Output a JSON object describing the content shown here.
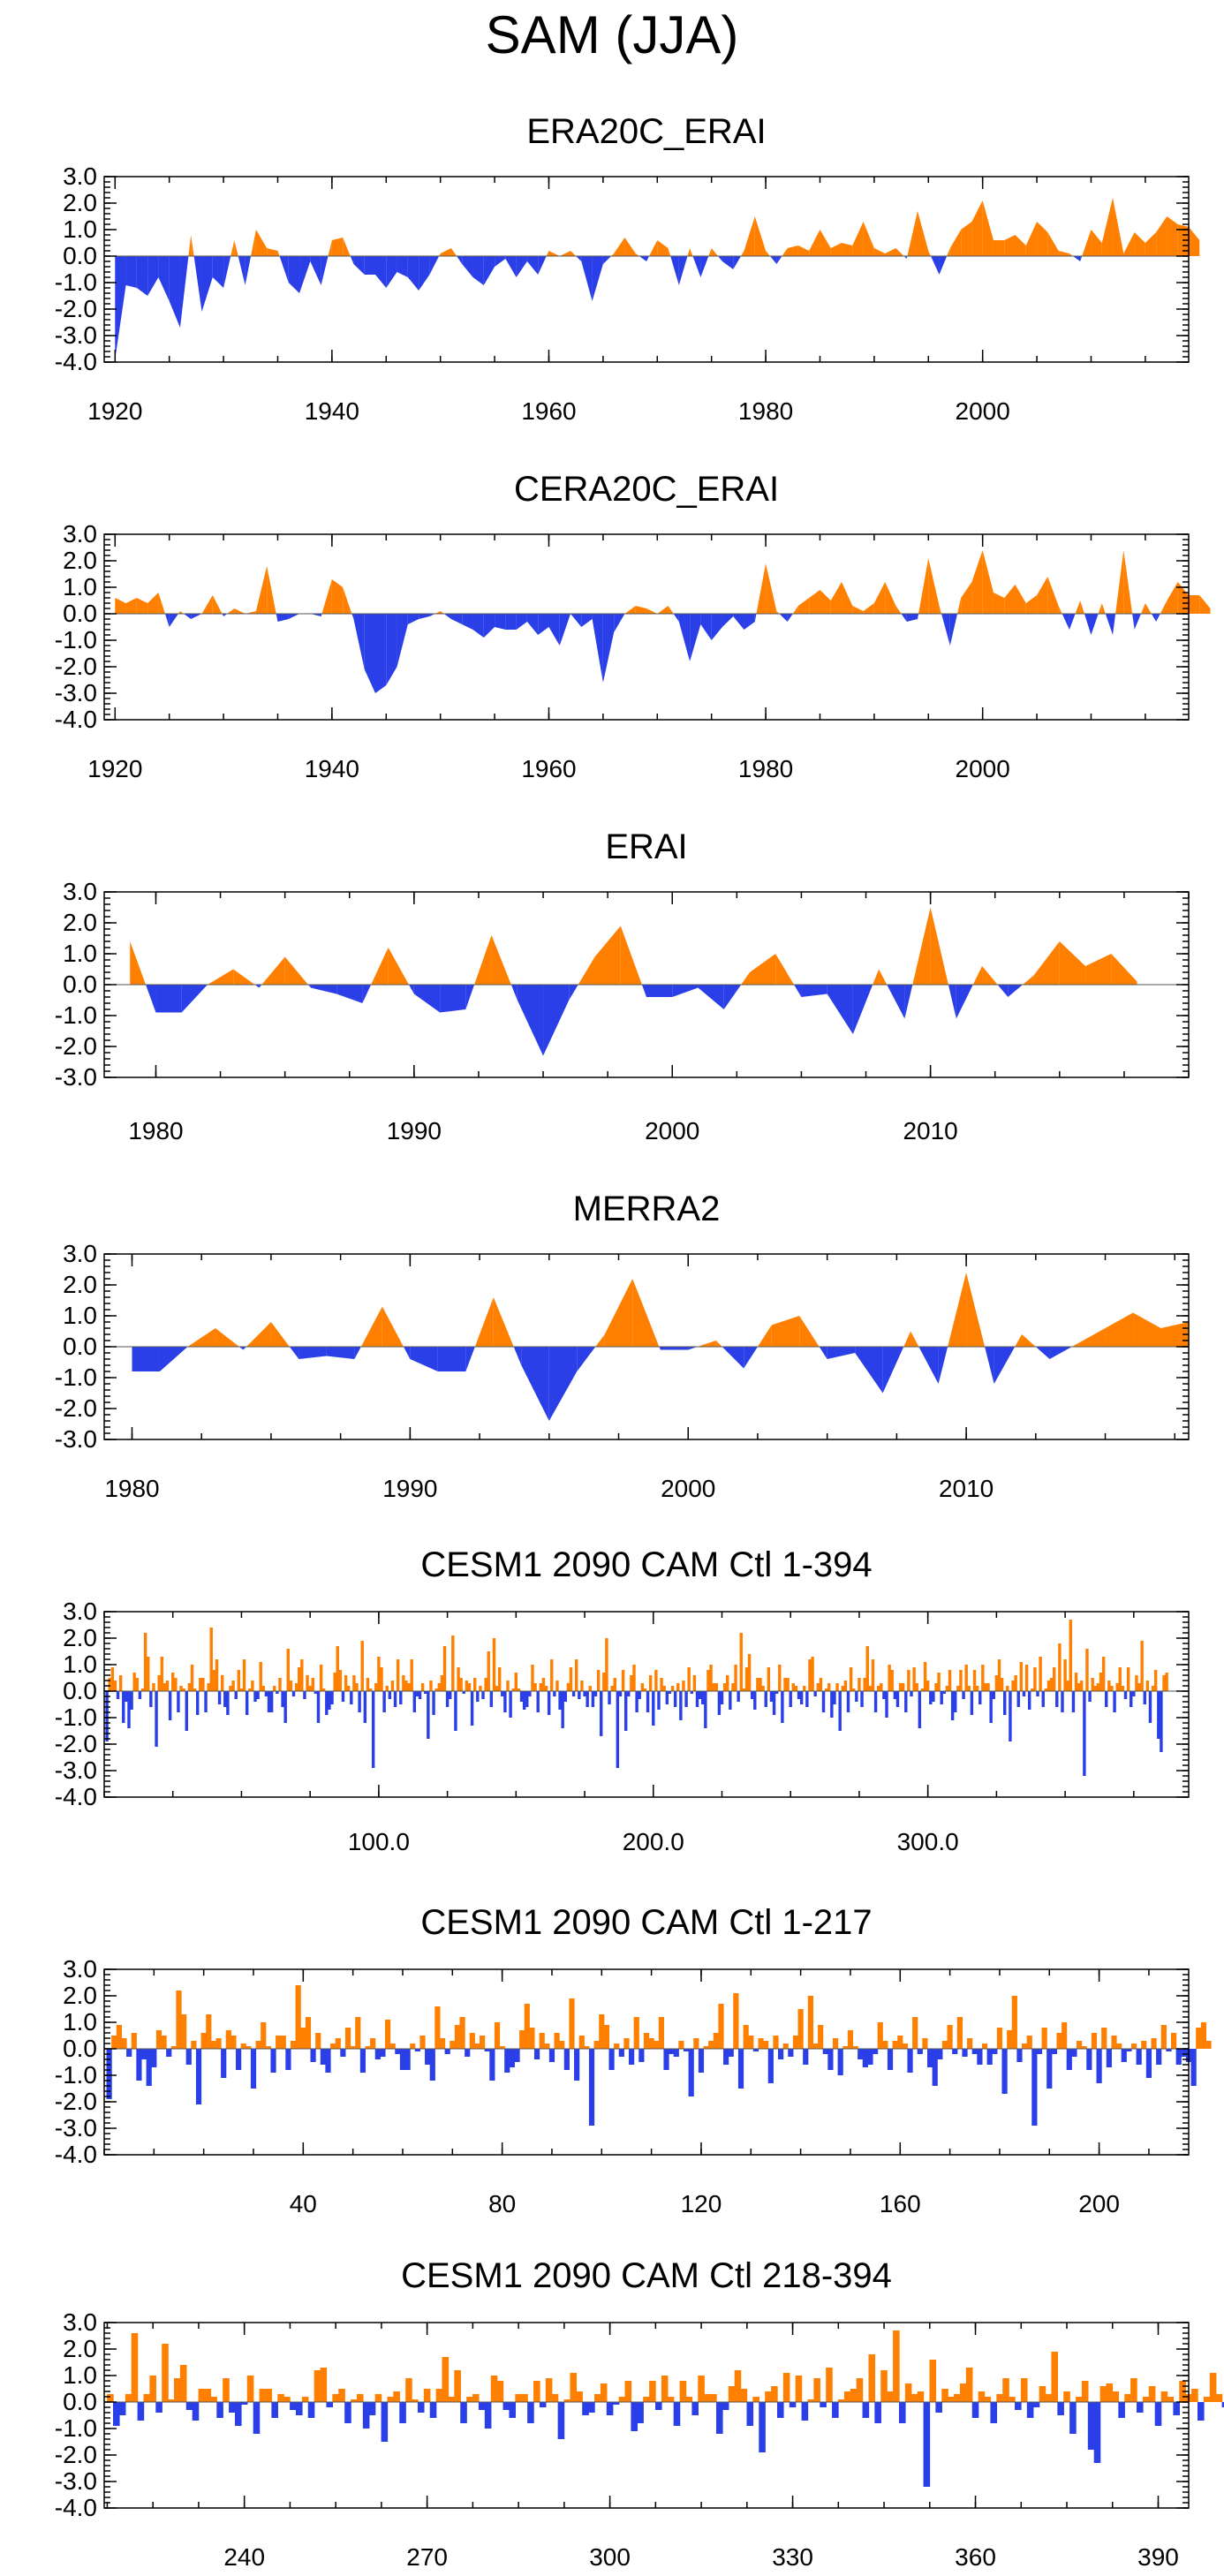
{
  "title": "SAM (JJA)",
  "colors": {
    "positive": "#ff8000",
    "negative": "#2a3fe8"
  },
  "chart_data": [
    {
      "type": "area",
      "title": "ERA20C_ERAI",
      "x_start": 1920,
      "x_step": 1,
      "xlim": [
        1919,
        2019
      ],
      "ylim": [
        -4,
        3
      ],
      "y_ticks": [
        "3.0",
        "2.0",
        "1.0",
        "0.0",
        "-1.0",
        "-2.0",
        "-3.0",
        "-4.0"
      ],
      "x_ticks": [
        "1920",
        "1940",
        "1960",
        "1980",
        "2000"
      ],
      "values": [
        -3.9,
        -1.1,
        -1.2,
        -1.5,
        -0.8,
        -1.7,
        -2.7,
        0.8,
        -2.1,
        -0.8,
        -1.2,
        0.6,
        -1.1,
        1.0,
        0.3,
        0.2,
        -1.0,
        -1.4,
        -0.2,
        -1.1,
        0.6,
        0.7,
        -0.3,
        -0.7,
        -0.7,
        -1.2,
        -0.6,
        -0.8,
        -1.3,
        -0.7,
        0.1,
        0.3,
        -0.3,
        -0.8,
        -1.1,
        -0.4,
        -0.1,
        -0.8,
        -0.2,
        -0.7,
        0.2,
        0.0,
        0.2,
        -0.2,
        -1.7,
        -0.3,
        0.1,
        0.7,
        0.1,
        -0.2,
        0.6,
        0.3,
        -1.1,
        0.3,
        -0.8,
        0.3,
        -0.2,
        -0.5,
        0.2,
        1.5,
        0.2,
        -0.3,
        0.3,
        0.4,
        0.2,
        1.0,
        0.3,
        0.5,
        0.4,
        1.3,
        0.3,
        0.1,
        0.3,
        -0.1,
        1.7,
        0.2,
        -0.7,
        0.3,
        1.0,
        1.3,
        2.1,
        0.6,
        0.6,
        0.8,
        0.4,
        1.3,
        0.9,
        0.2,
        0.1,
        -0.2,
        1.0,
        0.5,
        2.2,
        0.1,
        0.9,
        0.5,
        0.9,
        1.5,
        1.2,
        1.1,
        0.6
      ]
    },
    {
      "type": "area",
      "title": "CERA20C_ERAI",
      "x_start": 1920,
      "x_step": 1,
      "xlim": [
        1919,
        2019
      ],
      "ylim": [
        -4,
        3
      ],
      "y_ticks": [
        "3.0",
        "2.0",
        "1.0",
        "0.0",
        "-1.0",
        "-2.0",
        "-3.0",
        "-4.0"
      ],
      "x_ticks": [
        "1920",
        "1940",
        "1960",
        "1980",
        "2000"
      ],
      "values": [
        0.6,
        0.4,
        0.6,
        0.4,
        0.8,
        -0.5,
        0.1,
        -0.2,
        0.0,
        0.7,
        -0.1,
        0.2,
        0.0,
        0.1,
        1.8,
        -0.3,
        -0.2,
        0.0,
        0.0,
        -0.1,
        1.3,
        1.0,
        -0.2,
        -2.1,
        -3.0,
        -2.7,
        -2.0,
        -0.4,
        -0.2,
        -0.1,
        0.1,
        -0.2,
        -0.4,
        -0.6,
        -0.9,
        -0.5,
        -0.6,
        -0.6,
        -0.3,
        -0.8,
        -0.5,
        -1.2,
        0.0,
        -0.5,
        -0.2,
        -2.6,
        -0.7,
        0.0,
        0.3,
        0.2,
        0.0,
        0.3,
        -0.3,
        -1.8,
        -0.4,
        -1.0,
        -0.5,
        -0.1,
        -0.6,
        -0.3,
        1.9,
        0.1,
        -0.3,
        0.3,
        0.6,
        0.9,
        0.5,
        1.2,
        0.3,
        0.1,
        0.4,
        1.2,
        0.3,
        -0.3,
        -0.2,
        2.1,
        0.3,
        -1.2,
        0.6,
        1.2,
        2.4,
        0.8,
        0.6,
        1.1,
        0.4,
        0.7,
        1.4,
        0.3,
        -0.6,
        0.5,
        -0.8,
        0.4,
        -0.8,
        2.4,
        -0.6,
        0.4,
        -0.3,
        0.5,
        1.2,
        0.7,
        0.7,
        0.2
      ]
    },
    {
      "type": "area",
      "title": "ERAI",
      "x_start": 1979,
      "x_step": 1,
      "xlim": [
        1978,
        2020
      ],
      "ylim": [
        -3,
        3
      ],
      "y_ticks": [
        "3.0",
        "2.0",
        "1.0",
        "0.0",
        "-1.0",
        "-2.0",
        "-3.0"
      ],
      "x_ticks": [
        "1980",
        "1990",
        "2000",
        "2010"
      ],
      "values": [
        1.4,
        -0.9,
        -0.9,
        0.0,
        0.5,
        -0.1,
        0.9,
        -0.1,
        -0.3,
        -0.6,
        1.2,
        -0.3,
        -0.9,
        -0.8,
        1.6,
        -0.5,
        -2.3,
        -0.5,
        0.9,
        1.9,
        -0.4,
        -0.4,
        -0.1,
        -0.8,
        0.4,
        1.0,
        -0.4,
        -0.3,
        -1.6,
        0.5,
        -1.1,
        2.5,
        -1.1,
        0.6,
        -0.4,
        0.3,
        1.4,
        0.6,
        1.0,
        0.1
      ]
    },
    {
      "type": "area",
      "title": "MERRA2",
      "x_start": 1980,
      "x_step": 1,
      "xlim": [
        1979,
        2018
      ],
      "ylim": [
        -3,
        3
      ],
      "y_ticks": [
        "3.0",
        "2.0",
        "1.0",
        "0.0",
        "-1.0",
        "-2.0",
        "-3.0"
      ],
      "x_ticks": [
        "1980",
        "1990",
        "2000",
        "2010"
      ],
      "values": [
        -0.8,
        -0.8,
        0.0,
        0.6,
        -0.1,
        0.8,
        -0.4,
        -0.3,
        -0.4,
        1.3,
        -0.4,
        -0.8,
        -0.8,
        1.6,
        -0.6,
        -2.4,
        -0.8,
        0.4,
        2.2,
        -0.1,
        -0.1,
        0.2,
        -0.7,
        0.7,
        1.0,
        -0.4,
        -0.2,
        -1.5,
        0.5,
        -1.2,
        2.4,
        -1.2,
        0.4,
        -0.4,
        0.1,
        0.6,
        1.1,
        0.6,
        0.8
      ]
    },
    {
      "type": "bar",
      "title": "CESM1 2090 CAM Ctl 1-394",
      "x_start": 1,
      "x_step": 1,
      "xlim": [
        0,
        395
      ],
      "ylim": [
        -4,
        3
      ],
      "y_ticks": [
        "3.0",
        "2.0",
        "1.0",
        "0.0",
        "-1.0",
        "-2.0",
        "-3.0",
        "-4.0"
      ],
      "x_ticks": [
        "100.0",
        "200.0",
        "300.0"
      ],
      "x_tick_values": [
        100,
        200,
        300
      ],
      "values": [
        -1.9,
        0.5,
        0.9,
        0.4,
        -0.3,
        0.6,
        -1.2,
        -0.4,
        -1.4,
        -0.7,
        0.7,
        0.5,
        -0.3,
        0.1,
        2.2,
        1.3,
        -0.6,
        0.3,
        -2.1,
        0.6,
        1.3,
        0.3,
        0.4,
        -1.1,
        0.7,
        0.5,
        -0.8,
        0.2,
        0.1,
        -1.5,
        0.3,
        1.0,
        0.1,
        -0.9,
        0.5,
        0.5,
        -0.8,
        0.3,
        2.4,
        0.8,
        1.2,
        -0.5,
        0.6,
        -0.6,
        -0.9,
        0.2,
        0.4,
        -0.3,
        0.8,
        0.1,
        1.2,
        -0.9,
        0.1,
        0.4,
        -0.4,
        -0.3,
        1.1,
        0.2,
        -0.2,
        -0.8,
        -0.8,
        0.2,
        -0.1,
        0.5,
        -0.6,
        -1.2,
        1.6,
        0.4,
        -0.2,
        0.3,
        0.9,
        1.2,
        -0.3,
        0.6,
        0.2,
        0.5,
        -0.1,
        -1.2,
        1.0,
        0.1,
        -0.9,
        -0.7,
        -0.5,
        0.7,
        1.7,
        0.8,
        -0.4,
        0.6,
        0.2,
        -0.5,
        0.6,
        0.3,
        -0.8,
        1.9,
        -1.2,
        0.5,
        0.1,
        -2.9,
        0.3,
        1.3,
        0.9,
        -0.8,
        0.2,
        -0.3,
        0.4,
        -0.6,
        1.2,
        -0.5,
        0.6,
        0.4,
        0.3,
        1.2,
        -0.8,
        -0.2,
        -0.3,
        0.3,
        -0.1,
        -1.8,
        0.4,
        -0.9,
        0.1,
        0.3,
        0.6,
        1.7,
        -0.6,
        -0.3,
        2.1,
        -1.5,
        0.9,
        0.5,
        -0.1,
        0.4,
        0.3,
        -1.3,
        0.5,
        -0.4,
        0.2,
        -0.3,
        0.5,
        1.5,
        -0.6,
        2.0,
        0.2,
        0.9,
        -0.2,
        -0.8,
        0.4,
        -1.0,
        0.1,
        0.7,
        0.1,
        -0.4,
        -0.7,
        -0.6,
        -0.2,
        1.0,
        0.3,
        -0.8,
        0.3,
        0.5,
        0.2,
        -0.9,
        1.2,
        -0.2,
        0.4,
        -0.7,
        -1.4,
        -0.4,
        0.3,
        0.9,
        -0.2,
        1.2,
        -0.3,
        0.4,
        -0.2,
        -0.6,
        0.2,
        -0.6,
        -0.2,
        0.8,
        -1.7,
        0.7,
        2.0,
        -0.5,
        0.2,
        0.5,
        -2.9,
        -0.2,
        0.8,
        -1.5,
        -0.2,
        0.6,
        1.0,
        -0.8,
        -0.3,
        0.3,
        0.1,
        -0.8,
        0.6,
        -1.3,
        0.8,
        -0.7,
        0.5,
        0.2,
        -0.5,
        -0.1,
        0.2,
        -0.6,
        0.3,
        -1.1,
        0.4,
        -0.6,
        0.9,
        -0.1,
        0.6,
        -0.6,
        -0.3,
        -0.5,
        -1.4,
        0.8,
        1.0,
        0.3,
        0.3,
        -0.9,
        -0.5,
        0.3,
        0.6,
        -0.7,
        0.3,
        1.0,
        -0.4,
        2.2,
        0.1,
        0.9,
        1.4,
        -0.3,
        -0.7,
        0.5,
        0.5,
        0.2,
        -0.6,
        0.9,
        -0.4,
        -0.9,
        -0.1,
        1.0,
        -1.2,
        0.5,
        0.5,
        -0.6,
        0.3,
        0.2,
        -0.3,
        -0.5,
        0.2,
        -0.6,
        1.2,
        1.3,
        -0.2,
        0.3,
        0.5,
        -0.8,
        0.1,
        0.3,
        -1.0,
        -0.5,
        0.3,
        -1.5,
        0.2,
        0.4,
        -0.8,
        0.9,
        0.1,
        -0.4,
        0.5,
        -0.6,
        0.5,
        1.7,
        0.2,
        1.2,
        -0.8,
        0.2,
        0.3,
        -0.3,
        -1.0,
        1.0,
        0.8,
        -0.3,
        -0.6,
        0.3,
        0.3,
        -0.8,
        0.8,
        -0.2,
        0.9,
        0.3,
        -1.4,
        0.1,
        1.1,
        0.4,
        -0.5,
        -0.4,
        0.3,
        0.7,
        -0.5,
        -0.1,
        0.2,
        0.8,
        -1.1,
        -0.8,
        0.2,
        0.8,
        -0.3,
        1.0,
        0.2,
        -0.9,
        0.8,
        0.2,
        -0.5,
        1.0,
        0.3,
        0.3,
        -1.2,
        -0.3,
        0.6,
        1.2,
        0.5,
        -0.9,
        0.2,
        -1.9,
        0.4,
        0.6,
        -0.6,
        1.1,
        -0.2,
        1.0,
        -0.7,
        0.1,
        0.9,
        -0.2,
        1.3,
        -0.6,
        0.1,
        0.4,
        0.5,
        0.9,
        -0.6,
        1.8,
        -0.8,
        1.2,
        0.4,
        2.7,
        -0.8,
        0.7,
        0.3,
        0.4,
        -3.2,
        1.6,
        -0.4,
        0.5,
        0.2,
        0.3,
        0.7,
        1.3,
        -0.6,
        0.4,
        0.2,
        -0.8,
        0.3,
        0.9,
        0.2,
        -0.3,
        0.9,
        -0.6,
        -0.2,
        0.6,
        0.3,
        1.9,
        -0.5,
        0.4,
        -1.2,
        0.2,
        0.8,
        -1.8,
        -2.3,
        0.6,
        0.7
      ]
    },
    {
      "type": "bar",
      "title": "CESM1 2090 CAM Ctl 1-217",
      "x_start": 1,
      "x_step": 1,
      "xlim": [
        0,
        218
      ],
      "ylim": [
        -4,
        3
      ],
      "y_ticks": [
        "3.0",
        "2.0",
        "1.0",
        "0.0",
        "-1.0",
        "-2.0",
        "-3.0",
        "-4.0"
      ],
      "x_ticks": [
        "40",
        "80",
        "120",
        "160",
        "200"
      ],
      "x_tick_values": [
        40,
        80,
        120,
        160,
        200
      ],
      "values": [
        -1.9,
        0.5,
        0.9,
        0.4,
        -0.3,
        0.6,
        -1.2,
        -0.4,
        -1.4,
        -0.7,
        0.7,
        0.5,
        -0.3,
        0.1,
        2.2,
        1.3,
        -0.6,
        0.3,
        -2.1,
        0.6,
        1.3,
        0.3,
        0.4,
        -1.1,
        0.7,
        0.5,
        -0.8,
        0.2,
        0.1,
        -1.5,
        0.3,
        1.0,
        0.1,
        -0.9,
        0.5,
        0.5,
        -0.8,
        0.3,
        2.4,
        0.8,
        1.2,
        -0.5,
        0.6,
        -0.6,
        -0.9,
        0.2,
        0.4,
        -0.3,
        0.8,
        0.1,
        1.2,
        -0.9,
        0.1,
        0.4,
        -0.4,
        -0.3,
        1.1,
        0.2,
        -0.2,
        -0.8,
        -0.8,
        0.2,
        -0.1,
        0.5,
        -0.6,
        -1.2,
        1.6,
        0.4,
        -0.2,
        0.3,
        0.9,
        1.2,
        -0.3,
        0.6,
        0.2,
        0.5,
        -0.1,
        -1.2,
        1.0,
        0.1,
        -0.9,
        -0.7,
        -0.5,
        0.7,
        1.7,
        0.8,
        -0.4,
        0.6,
        0.2,
        -0.5,
        0.6,
        0.3,
        -0.8,
        1.9,
        -1.2,
        0.5,
        0.1,
        -2.9,
        0.3,
        1.3,
        0.9,
        -0.8,
        0.2,
        -0.3,
        0.4,
        -0.6,
        1.2,
        -0.5,
        0.6,
        0.4,
        0.3,
        1.2,
        -0.8,
        -0.2,
        -0.3,
        0.3,
        -0.1,
        -1.8,
        0.4,
        -0.9,
        0.1,
        0.3,
        0.6,
        1.7,
        -0.6,
        -0.3,
        2.1,
        -1.5,
        0.9,
        0.5,
        -0.1,
        0.4,
        0.3,
        -1.3,
        0.5,
        -0.4,
        0.2,
        -0.3,
        0.5,
        1.5,
        -0.6,
        2.0,
        0.2,
        0.9,
        -0.2,
        -0.8,
        0.4,
        -1.0,
        0.1,
        0.7,
        0.1,
        -0.4,
        -0.7,
        -0.6,
        -0.2,
        1.0,
        0.3,
        -0.8,
        0.3,
        0.5,
        0.2,
        -0.9,
        1.2,
        -0.2,
        0.4,
        -0.7,
        -1.4,
        -0.4,
        0.3,
        0.9,
        -0.2,
        1.2,
        -0.3,
        0.4,
        -0.2,
        -0.6,
        0.2,
        -0.6,
        -0.2,
        0.8,
        -1.7,
        0.7,
        2.0,
        -0.5,
        0.2,
        0.5,
        -2.9,
        -0.2,
        0.8,
        -1.5,
        -0.2,
        0.6,
        1.0,
        -0.8,
        -0.3,
        0.3,
        0.1,
        -0.8,
        0.6,
        -1.3,
        0.8,
        -0.7,
        0.5,
        0.2,
        -0.5,
        -0.1,
        0.2,
        -0.6,
        0.3,
        -1.1,
        0.4,
        -0.6,
        0.9,
        -0.1,
        0.6,
        -0.6,
        -0.3,
        -0.5,
        -1.4,
        0.8,
        1.0,
        0.3
      ]
    },
    {
      "type": "bar",
      "title": "CESM1 2090 CAM Ctl 218-394",
      "x_start": 218,
      "x_step": 1,
      "xlim": [
        217,
        395
      ],
      "ylim": [
        -4,
        3
      ],
      "y_ticks": [
        "3.0",
        "2.0",
        "1.0",
        "0.0",
        "-1.0",
        "-2.0",
        "-3.0",
        "-4.0"
      ],
      "x_ticks": [
        "240",
        "270",
        "300",
        "330",
        "360",
        "390"
      ],
      "x_tick_values": [
        240,
        270,
        300,
        330,
        360,
        390
      ],
      "values": [
        0.3,
        -0.9,
        -0.5,
        0.3,
        2.6,
        -0.7,
        0.3,
        1.0,
        -0.4,
        2.2,
        0.1,
        0.9,
        1.4,
        -0.3,
        -0.7,
        0.5,
        0.5,
        0.2,
        -0.6,
        0.9,
        -0.4,
        -0.9,
        -0.1,
        1.0,
        -1.2,
        0.5,
        0.5,
        -0.6,
        0.3,
        0.2,
        -0.3,
        -0.5,
        0.2,
        -0.6,
        1.2,
        1.3,
        -0.2,
        0.3,
        0.5,
        -0.8,
        0.1,
        0.3,
        -1.0,
        -0.5,
        0.3,
        -1.5,
        0.2,
        0.4,
        -0.8,
        0.9,
        0.1,
        -0.4,
        0.5,
        -0.6,
        0.5,
        1.7,
        0.2,
        1.2,
        -0.8,
        0.2,
        0.3,
        -0.3,
        -1.0,
        1.0,
        0.8,
        -0.3,
        -0.6,
        0.3,
        0.3,
        -0.8,
        0.8,
        -0.2,
        0.9,
        0.3,
        -1.4,
        0.1,
        1.1,
        0.4,
        -0.5,
        -0.4,
        0.3,
        0.7,
        -0.5,
        -0.1,
        0.2,
        0.8,
        -1.1,
        -0.8,
        0.2,
        0.8,
        -0.3,
        1.0,
        0.2,
        -0.9,
        0.8,
        0.2,
        -0.5,
        1.0,
        0.3,
        0.3,
        -1.2,
        -0.3,
        0.6,
        1.2,
        0.5,
        -0.9,
        0.2,
        -1.9,
        0.4,
        0.6,
        -0.6,
        1.1,
        -0.2,
        1.0,
        -0.7,
        0.1,
        0.9,
        -0.2,
        1.3,
        -0.6,
        0.1,
        0.4,
        0.5,
        0.9,
        -0.6,
        1.8,
        -0.8,
        1.2,
        0.4,
        2.7,
        -0.8,
        0.7,
        0.3,
        0.4,
        -3.2,
        1.6,
        -0.4,
        0.5,
        0.2,
        0.3,
        0.7,
        1.3,
        -0.6,
        0.4,
        0.2,
        -0.8,
        0.3,
        0.9,
        0.2,
        -0.3,
        0.9,
        -0.6,
        -0.2,
        0.6,
        0.3,
        1.9,
        -0.5,
        0.4,
        -1.2,
        0.2,
        0.8,
        -1.8,
        -2.3,
        0.6,
        0.7,
        0.4,
        -0.6,
        0.3,
        0.9,
        -0.4,
        0.2,
        0.6,
        -0.9,
        0.4,
        0.2,
        -0.5,
        0.8,
        0.3,
        0.5,
        -0.7,
        0.2,
        1.1,
        0.3,
        -0.2
      ]
    }
  ]
}
